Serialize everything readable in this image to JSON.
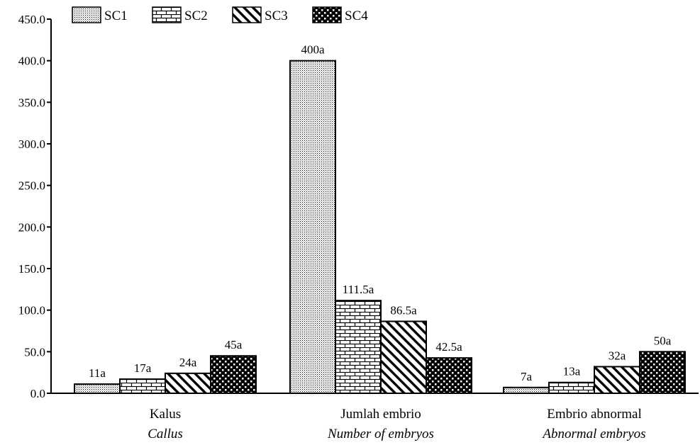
{
  "chart_data": {
    "type": "bar",
    "categories": [
      "Kalus",
      "Jumlah embrio",
      "Embrio abnormal"
    ],
    "category_sublabels": [
      "Callus",
      "Number of embryos",
      "Abnormal embryos"
    ],
    "series": [
      {
        "name": "SC1",
        "values": [
          11,
          400,
          7
        ],
        "labels": [
          "11a",
          "400a",
          "7a"
        ],
        "pattern": "dots"
      },
      {
        "name": "SC2",
        "values": [
          17,
          111.5,
          13
        ],
        "labels": [
          "17a",
          "111.5a",
          "13a"
        ],
        "pattern": "bricks"
      },
      {
        "name": "SC3",
        "values": [
          24,
          86.5,
          32
        ],
        "labels": [
          "24a",
          "86.5a",
          "32a"
        ],
        "pattern": "diagonal"
      },
      {
        "name": "SC4",
        "values": [
          45,
          42.5,
          50
        ],
        "labels": [
          "45a",
          "42.5a",
          "50a"
        ],
        "pattern": "checker"
      }
    ],
    "yticks": [
      "0.0",
      "50.0",
      "100.0",
      "150.0",
      "200.0",
      "250.0",
      "300.0",
      "350.0",
      "400.0",
      "450.0"
    ],
    "ylim": [
      0,
      450
    ],
    "title": "",
    "xlabel": "",
    "ylabel": "",
    "grid": false,
    "legend": "top-left"
  },
  "colors": {
    "ink": "#000000",
    "background": "#ffffff"
  }
}
